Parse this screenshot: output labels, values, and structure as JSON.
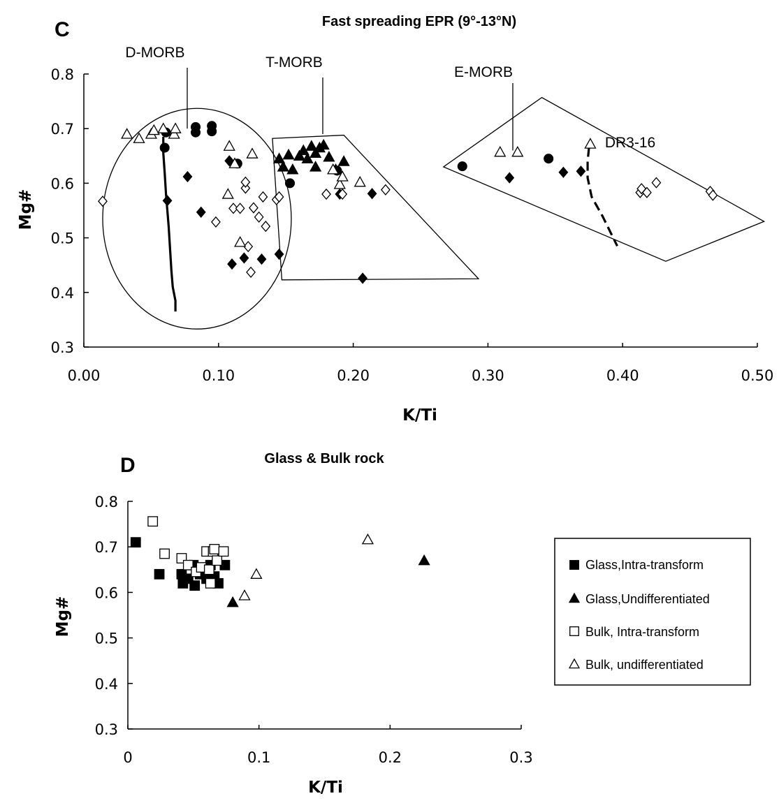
{
  "chart_data": [
    {
      "panel": "C",
      "type": "scatter",
      "title": "Fast spreading EPR (9°-13°N)",
      "xlabel": "K/Ti",
      "ylabel": "Mg#",
      "xlim": [
        0,
        0.5
      ],
      "ylim": [
        0.3,
        0.8
      ],
      "xticks": [
        "0.00",
        "0.10",
        "0.20",
        "0.30",
        "0.40",
        "0.50"
      ],
      "yticks": [
        "0.3",
        "0.4",
        "0.5",
        "0.6",
        "0.7",
        "0.8"
      ],
      "grid": false,
      "series": [
        {
          "marker": "filled-circle",
          "points": [
            [
              0.061,
              0.693
            ],
            [
              0.06,
              0.665
            ],
            [
              0.083,
              0.703
            ],
            [
              0.083,
              0.693
            ],
            [
              0.095,
              0.705
            ],
            [
              0.095,
              0.695
            ],
            [
              0.114,
              0.636
            ],
            [
              0.153,
              0.6
            ],
            [
              0.188,
              0.623
            ],
            [
              0.281,
              0.631
            ],
            [
              0.345,
              0.645
            ]
          ]
        },
        {
          "marker": "filled-diamond",
          "points": [
            [
              0.062,
              0.568
            ],
            [
              0.077,
              0.612
            ],
            [
              0.087,
              0.547
            ],
            [
              0.108,
              0.641
            ],
            [
              0.11,
              0.452
            ],
            [
              0.119,
              0.463
            ],
            [
              0.132,
              0.461
            ],
            [
              0.145,
              0.47
            ],
            [
              0.19,
              0.58
            ],
            [
              0.207,
              0.426
            ],
            [
              0.214,
              0.581
            ],
            [
              0.316,
              0.61
            ],
            [
              0.356,
              0.62
            ],
            [
              0.369,
              0.622
            ]
          ]
        },
        {
          "marker": "filled-triangle",
          "points": [
            [
              0.145,
              0.645
            ],
            [
              0.148,
              0.63
            ],
            [
              0.152,
              0.652
            ],
            [
              0.155,
              0.625
            ],
            [
              0.16,
              0.65
            ],
            [
              0.163,
              0.66
            ],
            [
              0.166,
              0.645
            ],
            [
              0.169,
              0.668
            ],
            [
              0.172,
              0.655
            ],
            [
              0.175,
              0.665
            ],
            [
              0.178,
              0.67
            ],
            [
              0.172,
              0.63
            ],
            [
              0.182,
              0.648
            ],
            [
              0.187,
              0.625
            ],
            [
              0.193,
              0.64
            ]
          ]
        },
        {
          "marker": "open-diamond",
          "points": [
            [
              0.014,
              0.567
            ],
            [
              0.098,
              0.529
            ],
            [
              0.111,
              0.554
            ],
            [
              0.116,
              0.554
            ],
            [
              0.12,
              0.591
            ],
            [
              0.12,
              0.602
            ],
            [
              0.122,
              0.484
            ],
            [
              0.124,
              0.437
            ],
            [
              0.126,
              0.555
            ],
            [
              0.13,
              0.538
            ],
            [
              0.133,
              0.575
            ],
            [
              0.135,
              0.521
            ],
            [
              0.143,
              0.57
            ],
            [
              0.145,
              0.575
            ],
            [
              0.18,
              0.58
            ],
            [
              0.192,
              0.58
            ],
            [
              0.224,
              0.588
            ],
            [
              0.413,
              0.583
            ],
            [
              0.414,
              0.59
            ],
            [
              0.418,
              0.583
            ],
            [
              0.425,
              0.601
            ],
            [
              0.465,
              0.585
            ],
            [
              0.467,
              0.578
            ]
          ]
        },
        {
          "marker": "open-triangle",
          "points": [
            [
              0.032,
              0.69
            ],
            [
              0.041,
              0.682
            ],
            [
              0.05,
              0.69
            ],
            [
              0.052,
              0.697
            ],
            [
              0.059,
              0.7
            ],
            [
              0.067,
              0.69
            ],
            [
              0.068,
              0.7
            ],
            [
              0.107,
              0.58
            ],
            [
              0.108,
              0.668
            ],
            [
              0.112,
              0.636
            ],
            [
              0.116,
              0.492
            ],
            [
              0.125,
              0.654
            ],
            [
              0.185,
              0.625
            ],
            [
              0.19,
              0.598
            ],
            [
              0.192,
              0.612
            ],
            [
              0.205,
              0.602
            ],
            [
              0.309,
              0.657
            ],
            [
              0.322,
              0.657
            ],
            [
              0.376,
              0.672
            ]
          ]
        }
      ],
      "annotations": [
        {
          "label": "D-MORB",
          "pointer_to": [
            0.076,
            0.7
          ]
        },
        {
          "label": "T-MORB",
          "pointer_to": [
            0.176,
            0.69
          ]
        },
        {
          "label": "E-MORB",
          "pointer_to": [
            0.318,
            0.66
          ]
        },
        {
          "label": "DR3-16",
          "pointer_to": [
            0.376,
            0.672
          ]
        }
      ],
      "fields": [
        {
          "name": "D-MORB",
          "shape": "ellipse",
          "center": [
            0.084,
            0.535
          ],
          "radius": [
            0.07,
            0.202
          ]
        },
        {
          "name": "T-MORB",
          "shape": "polygon",
          "points": [
            [
              0.14,
              0.682
            ],
            [
              0.193,
              0.688
            ],
            [
              0.293,
              0.425
            ],
            [
              0.147,
              0.423
            ]
          ]
        },
        {
          "name": "E-MORB",
          "shape": "polygon",
          "points": [
            [
              0.267,
              0.63
            ],
            [
              0.34,
              0.757
            ],
            [
              0.505,
              0.53
            ],
            [
              0.432,
              0.457
            ]
          ]
        }
      ],
      "trend_lines": [
        {
          "style": "solid",
          "points": [
            [
              0.059,
              0.685
            ],
            [
              0.059,
              0.655
            ],
            [
              0.06,
              0.62
            ],
            [
              0.061,
              0.58
            ],
            [
              0.062,
              0.55
            ],
            [
              0.063,
              0.52
            ],
            [
              0.064,
              0.48
            ],
            [
              0.065,
              0.44
            ],
            [
              0.066,
              0.41
            ],
            [
              0.068,
              0.385
            ],
            [
              0.068,
              0.365
            ]
          ]
        },
        {
          "style": "dashed",
          "points": [
            [
              0.375,
              0.665
            ],
            [
              0.374,
              0.64
            ],
            [
              0.374,
              0.61
            ],
            [
              0.377,
              0.575
            ],
            [
              0.385,
              0.54
            ],
            [
              0.391,
              0.51
            ],
            [
              0.396,
              0.485
            ]
          ]
        }
      ]
    },
    {
      "panel": "D",
      "type": "scatter",
      "title": "Glass & Bulk rock",
      "xlabel": "K/Ti",
      "ylabel": "Mg#",
      "xlim": [
        0,
        0.3
      ],
      "ylim": [
        0.3,
        0.8
      ],
      "xticks": [
        "0",
        "0.1",
        "0.2",
        "0.3"
      ],
      "yticks": [
        "0.3",
        "0.4",
        "0.5",
        "0.6",
        "0.7",
        "0.8"
      ],
      "grid": false,
      "legend_position": "right",
      "series": [
        {
          "name": "Glass,Intra-transform",
          "marker": "filled-square",
          "points": [
            [
              0.006,
              0.71
            ],
            [
              0.024,
              0.64
            ],
            [
              0.041,
              0.64
            ],
            [
              0.042,
              0.62
            ],
            [
              0.046,
              0.63
            ],
            [
              0.05,
              0.66
            ],
            [
              0.051,
              0.615
            ],
            [
              0.055,
              0.64
            ],
            [
              0.058,
              0.65
            ],
            [
              0.06,
              0.63
            ],
            [
              0.063,
              0.66
            ],
            [
              0.066,
              0.635
            ],
            [
              0.069,
              0.62
            ],
            [
              0.074,
              0.66
            ]
          ]
        },
        {
          "name": "Glass,Undifferentiated",
          "marker": "filled-triangle",
          "points": [
            [
              0.08,
              0.578
            ],
            [
              0.226,
              0.67
            ]
          ]
        },
        {
          "name": "Bulk, Intra-transform",
          "marker": "open-square",
          "points": [
            [
              0.019,
              0.756
            ],
            [
              0.028,
              0.685
            ],
            [
              0.041,
              0.675
            ],
            [
              0.046,
              0.66
            ],
            [
              0.052,
              0.645
            ],
            [
              0.056,
              0.655
            ],
            [
              0.06,
              0.69
            ],
            [
              0.062,
              0.65
            ],
            [
              0.063,
              0.62
            ],
            [
              0.065,
              0.69
            ],
            [
              0.066,
              0.695
            ],
            [
              0.068,
              0.67
            ],
            [
              0.073,
              0.69
            ]
          ]
        },
        {
          "name": "Bulk, undifferentiated",
          "marker": "open-triangle",
          "points": [
            [
              0.089,
              0.593
            ],
            [
              0.098,
              0.64
            ],
            [
              0.183,
              0.716
            ]
          ]
        }
      ]
    }
  ]
}
